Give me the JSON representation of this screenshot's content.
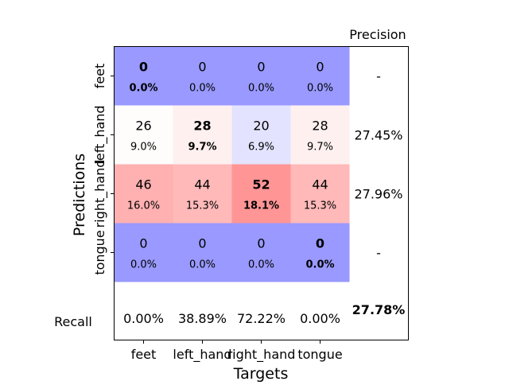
{
  "chart_data": {
    "type": "heatmap",
    "title": "",
    "xlabel": "Targets",
    "ylabel": "Predictions",
    "x_categories": [
      "feet",
      "left_hand",
      "right_hand",
      "tongue"
    ],
    "y_categories": [
      "feet",
      "left_hand",
      "right_hand",
      "tongue"
    ],
    "counts": [
      [
        0,
        0,
        0,
        0
      ],
      [
        26,
        28,
        20,
        28
      ],
      [
        46,
        44,
        52,
        44
      ],
      [
        0,
        0,
        0,
        0
      ]
    ],
    "percentages": [
      [
        "0.0%",
        "0.0%",
        "0.0%",
        "0.0%"
      ],
      [
        "9.0%",
        "9.7%",
        "6.9%",
        "9.7%"
      ],
      [
        "16.0%",
        "15.3%",
        "18.1%",
        "15.3%"
      ],
      [
        "0.0%",
        "0.0%",
        "0.0%",
        "0.0%"
      ]
    ],
    "precision_label": "Precision",
    "precision": [
      "-",
      "27.45%",
      "27.96%",
      "-"
    ],
    "recall_label": "Recall",
    "recall": [
      "0.00%",
      "38.89%",
      "72.22%",
      "0.00%"
    ],
    "overall_accuracy": "27.78%",
    "cell_colors": [
      [
        "#9999ff",
        "#9999ff",
        "#9999ff",
        "#9999ff"
      ],
      [
        "#fffcfc",
        "#fff0f0",
        "#e3e3ff",
        "#fff0f0"
      ],
      [
        "#ffb0b0",
        "#ffb9b9",
        "#ff9595",
        "#ffb9b9"
      ],
      [
        "#9999ff",
        "#9999ff",
        "#9999ff",
        "#9999ff"
      ]
    ],
    "grid": false
  }
}
